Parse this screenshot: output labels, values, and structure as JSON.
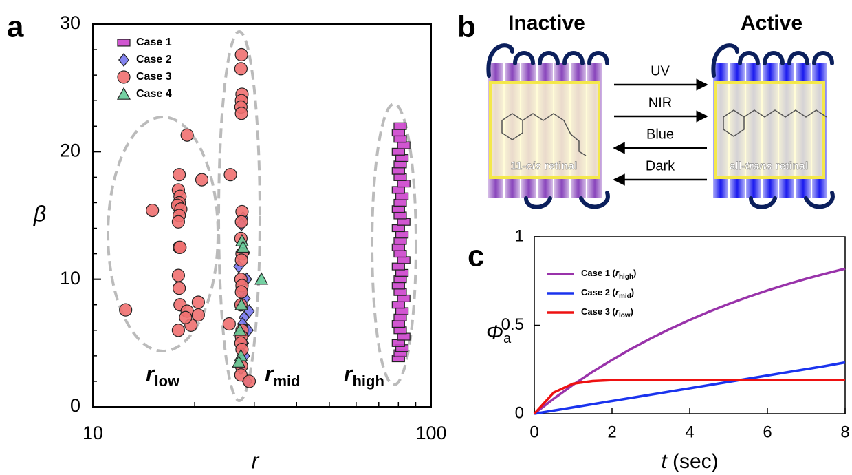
{
  "panel_labels": [
    "a",
    "b",
    "c"
  ],
  "chart_data": [
    {
      "type": "scatter",
      "xlog": true,
      "xlim": [
        10,
        100
      ],
      "xticks": [
        10,
        100
      ],
      "xminorticks": [
        20,
        30,
        40,
        50,
        60,
        70,
        80,
        90
      ],
      "ylim": [
        0,
        30
      ],
      "yticks": [
        0,
        10,
        20,
        30
      ],
      "yminorticks": [
        2,
        4,
        6,
        8,
        12,
        14,
        16,
        18,
        22,
        24,
        26,
        28
      ],
      "xlabel": "r",
      "ylabel": "β",
      "legend": "upper-left",
      "annotations": [
        {
          "main": "r",
          "sub": "low"
        },
        {
          "main": "r",
          "sub": "mid"
        },
        {
          "main": "r",
          "sub": "high"
        }
      ],
      "series": [
        {
          "name": "Case 1",
          "marker": "square",
          "color": "#cc44cc",
          "x": [
            80,
            81,
            82,
            80,
            83,
            81,
            80,
            81,
            82,
            80,
            83,
            81,
            80,
            81,
            82,
            80,
            83,
            81,
            80,
            81,
            82,
            80,
            83,
            81,
            80,
            81,
            82,
            80,
            83,
            81,
            80,
            81,
            82,
            80,
            83,
            81,
            80,
            81
          ],
          "y": [
            3.8,
            4.2,
            4.6,
            5,
            5.5,
            6,
            6.5,
            7,
            7.5,
            8,
            8.5,
            9,
            9.5,
            10,
            10.5,
            11,
            11.5,
            12,
            12.5,
            13,
            13.5,
            14,
            14.5,
            15,
            15.5,
            16,
            16.5,
            17,
            17.5,
            18,
            18.5,
            19,
            19.5,
            20,
            20.5,
            21,
            21.5,
            22
          ]
        },
        {
          "name": "Case 2",
          "marker": "diamond",
          "color": "#7777ee",
          "x": [
            27.8,
            27.5,
            28,
            27,
            28.5,
            27.6,
            28.2,
            27.3,
            29,
            28,
            27.7,
            28.3,
            27.2,
            28.8,
            27.9,
            28.1,
            27.4,
            28.6
          ],
          "y": [
            14.8,
            14.3,
            12,
            11,
            10,
            9,
            8.5,
            8,
            7.5,
            7,
            6.5,
            6,
            5.5,
            6,
            5,
            4,
            3,
            2
          ]
        },
        {
          "name": "Case 3",
          "marker": "circle",
          "color": "#f07070",
          "x": [
            18,
            17.9,
            18.1,
            18,
            17.8,
            18.2,
            18,
            17.9,
            18,
            18.1,
            17.9,
            18,
            18.1,
            17.9,
            12.5,
            15,
            19,
            21,
            19,
            19.5,
            20.5,
            20.5,
            18.8,
            27.5,
            27.4,
            27.6,
            27.5,
            27.4,
            27.5,
            27.6,
            27.5,
            27.4,
            27.6,
            27.5,
            27.4,
            27.6,
            27.5,
            27.4,
            27.6,
            27.5,
            27.4,
            27.6,
            27.5,
            27.4,
            25.5,
            25.3,
            29
          ],
          "y": [
            18.2,
            17,
            16.5,
            16,
            15.8,
            15.5,
            15,
            14.5,
            12.5,
            12.5,
            10.3,
            9.3,
            8,
            6,
            7.6,
            15.4,
            21.3,
            17.8,
            7.5,
            6.4,
            7.2,
            8.2,
            7,
            27.6,
            26.5,
            24.5,
            24,
            23.5,
            23,
            15.3,
            14.5,
            13.2,
            12,
            11.5,
            10,
            9.5,
            9,
            8,
            6,
            5.5,
            5,
            4.5,
            3.2,
            2.5,
            18.2,
            6.5,
            2
          ]
        },
        {
          "name": "Case 4",
          "marker": "triangle",
          "color": "#66cc99",
          "x": [
            27.6,
            27.8,
            27.5,
            27.2,
            27.4,
            27,
            31.5
          ],
          "y": [
            13,
            12.5,
            8,
            6,
            4,
            3.5,
            10
          ]
        }
      ]
    },
    {
      "type": "line",
      "xlim": [
        0,
        8
      ],
      "xticks": [
        0,
        2,
        4,
        6,
        8
      ],
      "ylim": [
        0,
        1
      ],
      "yticks": [
        0,
        0.5,
        1
      ],
      "legend": "upper-left",
      "xlabel": {
        "var": "t",
        "rest": " (sec)"
      },
      "ylabel": {
        "main": "Φ",
        "sub": "a"
      },
      "x": [
        0,
        0.5,
        1,
        1.5,
        2,
        2.5,
        3,
        3.5,
        4,
        4.5,
        5,
        5.5,
        6,
        6.5,
        7,
        7.5,
        8
      ],
      "series": [
        {
          "name": "Case 1 (",
          "var": "r",
          "sub": "high",
          "close": ")",
          "color": "#9933aa",
          "values": [
            0,
            0.085,
            0.164,
            0.237,
            0.304,
            0.368,
            0.426,
            0.48,
            0.53,
            0.577,
            0.62,
            0.66,
            0.697,
            0.731,
            0.763,
            0.792,
            0.82
          ]
        },
        {
          "name": "Case 2 (",
          "var": "r",
          "sub": "mid",
          "close": ")",
          "color": "#1a33ee",
          "values": [
            0,
            0.018,
            0.036,
            0.054,
            0.072,
            0.09,
            0.108,
            0.126,
            0.144,
            0.162,
            0.18,
            0.198,
            0.216,
            0.234,
            0.252,
            0.27,
            0.29
          ]
        },
        {
          "name": "Case 3 (",
          "var": "r",
          "sub": "low",
          "close": ")",
          "color": "#ee1111",
          "values": [
            0,
            0.12,
            0.17,
            0.185,
            0.19,
            0.19,
            0.19,
            0.19,
            0.19,
            0.19,
            0.19,
            0.19,
            0.19,
            0.19,
            0.19,
            0.19,
            0.19
          ]
        }
      ]
    }
  ],
  "diagram": {
    "states": [
      {
        "title": "Inactive",
        "label": {
          "pre": "11-",
          "em": "cis",
          "post": " retinal"
        },
        "color": "#8844bb"
      },
      {
        "title": "Active",
        "label": {
          "pre": "all-",
          "em": "trans",
          "post": " retinal"
        },
        "color": "#1a1aee"
      }
    ],
    "arrows": [
      {
        "label": "UV",
        "direction": "right"
      },
      {
        "label": "NIR",
        "direction": "right"
      },
      {
        "label": "Blue",
        "direction": "left"
      },
      {
        "label": "Dark",
        "direction": "left"
      }
    ]
  }
}
